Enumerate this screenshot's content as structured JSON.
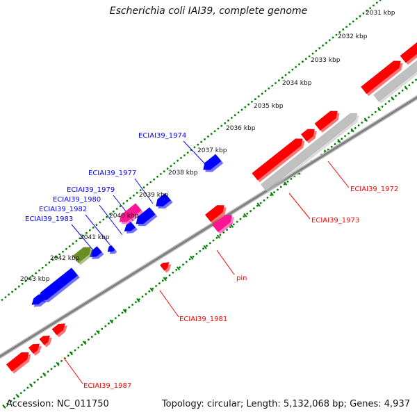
{
  "title": "Escherichia coli IAI39, complete genome",
  "footer": {
    "accession": "Accession: NC_011750",
    "summary": "Topology: circular; Length: 5,132,068 bp; Genes: 4,937"
  },
  "colors": {
    "forward_gene": "#ff0000",
    "reverse_gene": "#0000ff",
    "pseudo_gene": "#c0c0c0",
    "rna_gene": "#ff1493",
    "misc_feature": "#6b8e23",
    "backbone": "#808080",
    "tick": "#008000"
  },
  "scale_labels": [
    "2031 kbp",
    "2032 kbp",
    "2033 kbp",
    "2034 kbp",
    "2035 kbp",
    "2036 kbp",
    "2037 kbp",
    "2038 kbp",
    "2039 kbp",
    "2040 kbp",
    "2041 kbp",
    "2042 kbp",
    "2043 kbp"
  ],
  "gene_labels": [
    {
      "text": "ECIAI39_1974",
      "strand": "reverse"
    },
    {
      "text": "ECIAI39_1977",
      "strand": "reverse"
    },
    {
      "text": "ECIAI39_1979",
      "strand": "reverse"
    },
    {
      "text": "ECIAI39_1980",
      "strand": "reverse"
    },
    {
      "text": "ECIAI39_1982",
      "strand": "reverse"
    },
    {
      "text": "ECIAI39_1983",
      "strand": "reverse"
    },
    {
      "text": "ECIAI39_1972",
      "strand": "forward"
    },
    {
      "text": "ECIAI39_1973",
      "strand": "forward"
    },
    {
      "text": "pin",
      "strand": "forward"
    },
    {
      "text": "ECIAI39_1981",
      "strand": "forward"
    },
    {
      "text": "ECIAI39_1987",
      "strand": "forward"
    }
  ]
}
